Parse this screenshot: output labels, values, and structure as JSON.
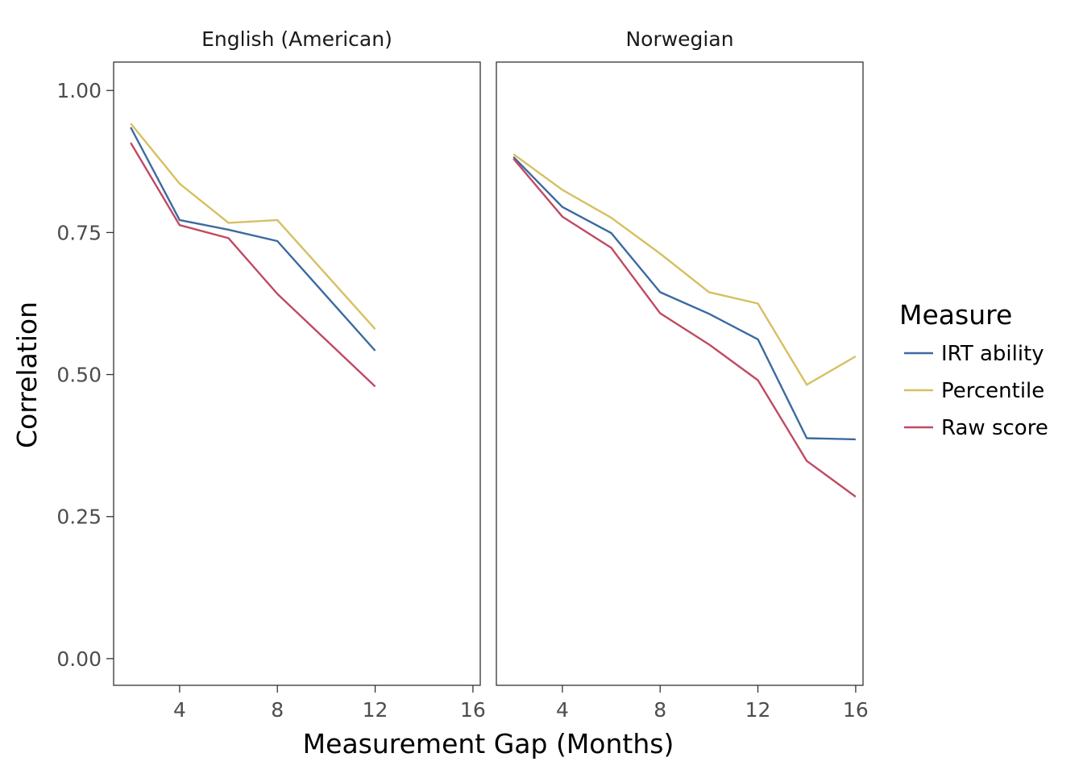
{
  "chart_data": {
    "type": "line",
    "xlabel": "Measurement Gap (Months)",
    "ylabel": "Correlation",
    "xlim": [
      1.3,
      16.3
    ],
    "ylim": [
      -0.047,
      1.05
    ],
    "x_ticks": [
      4,
      8,
      12,
      16
    ],
    "y_ticks": [
      0.0,
      0.25,
      0.5,
      0.75,
      1.0
    ],
    "y_tick_labels": [
      "0.00",
      "0.25",
      "0.50",
      "0.75",
      "1.00"
    ],
    "grid": false,
    "legend": {
      "title": "Measure",
      "placement": "right",
      "entries": [
        "IRT ability",
        "Percentile",
        "Raw score"
      ]
    },
    "colors": {
      "IRT ability": "#3b6aa0",
      "Percentile": "#d6c060",
      "Raw score": "#c04a62"
    },
    "panels": [
      {
        "label": "English (American)",
        "series": [
          {
            "name": "IRT ability",
            "x": [
              2,
              4,
              6,
              8,
              12
            ],
            "y": [
              0.935,
              0.772,
              0.755,
              0.735,
              0.542
            ]
          },
          {
            "name": "Percentile",
            "x": [
              2,
              4,
              6,
              8,
              12
            ],
            "y": [
              0.942,
              0.836,
              0.767,
              0.772,
              0.58
            ]
          },
          {
            "name": "Raw score",
            "x": [
              2,
              4,
              6,
              8,
              12
            ],
            "y": [
              0.908,
              0.763,
              0.74,
              0.642,
              0.479
            ]
          }
        ]
      },
      {
        "label": "Norwegian",
        "series": [
          {
            "name": "IRT ability",
            "x": [
              2,
              4,
              6,
              8,
              10,
              12,
              14,
              16
            ],
            "y": [
              0.883,
              0.795,
              0.749,
              0.645,
              0.607,
              0.562,
              0.388,
              0.386
            ]
          },
          {
            "name": "Percentile",
            "x": [
              2,
              4,
              6,
              8,
              10,
              12,
              14,
              16
            ],
            "y": [
              0.888,
              0.825,
              0.776,
              0.713,
              0.645,
              0.625,
              0.482,
              0.532
            ]
          },
          {
            "name": "Raw score",
            "x": [
              2,
              4,
              6,
              8,
              10,
              12,
              14,
              16
            ],
            "y": [
              0.88,
              0.778,
              0.723,
              0.608,
              0.553,
              0.49,
              0.348,
              0.285
            ]
          }
        ]
      }
    ]
  }
}
